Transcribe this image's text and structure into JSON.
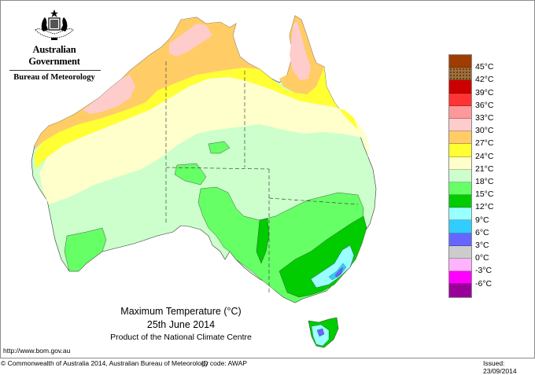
{
  "header": {
    "government": "Australian Government",
    "bureau": "Bureau of Meteorology",
    "crest_icon": "coat-of-arms-icon"
  },
  "map": {
    "title": "Maximum Temperature (°C)",
    "date": "25th June 2014",
    "product": "Product of the National Climate Centre",
    "region": "Australia",
    "colors": {
      "pink_30_33": "#ffcccc",
      "orange_27_30": "#ffcc66",
      "yellow_24_27": "#ffff33",
      "cream_21_24": "#ffffcc",
      "lightgreen_18_21": "#ccffcc",
      "green_15_18": "#66ff66",
      "darkgreen_12_15": "#00cc00",
      "cyan_9_12": "#99ffff",
      "blue_6_9": "#33ccff",
      "violet_3_6": "#6666ff"
    }
  },
  "legend": {
    "items": [
      {
        "label": "",
        "color": "#a03c00"
      },
      {
        "label": "45°C",
        "color": "#a0703c",
        "pattern": "dotted"
      },
      {
        "label": "42°C",
        "color": "#cc0000"
      },
      {
        "label": "39°C",
        "color": "#ff3333"
      },
      {
        "label": "36°C",
        "color": "#ff9999"
      },
      {
        "label": "33°C",
        "color": "#ffcccc"
      },
      {
        "label": "30°C",
        "color": "#ffcc66"
      },
      {
        "label": "27°C",
        "color": "#ffff33"
      },
      {
        "label": "24°C",
        "color": "#ffffcc"
      },
      {
        "label": "21°C",
        "color": "#ccffcc"
      },
      {
        "label": "18°C",
        "color": "#66ff66"
      },
      {
        "label": "15°C",
        "color": "#00cc00"
      },
      {
        "label": "12°C",
        "color": "#99ffff"
      },
      {
        "label": "9°C",
        "color": "#33ccff"
      },
      {
        "label": "6°C",
        "color": "#6666ff"
      },
      {
        "label": "3°C",
        "color": "#cccccc"
      },
      {
        "label": "0°C",
        "color": "#ffb3ff"
      },
      {
        "label": "-3°C",
        "color": "#ff00ff"
      },
      {
        "label": "-6°C",
        "color": "#990099"
      }
    ]
  },
  "footer": {
    "url": "http://www.bom.gov.au",
    "copyright": "© Commonwealth of Australia 2014, Australian Bureau of Meteorology",
    "id_code": "ID code: AWAP",
    "issued": "Issued: 23/09/2014"
  }
}
